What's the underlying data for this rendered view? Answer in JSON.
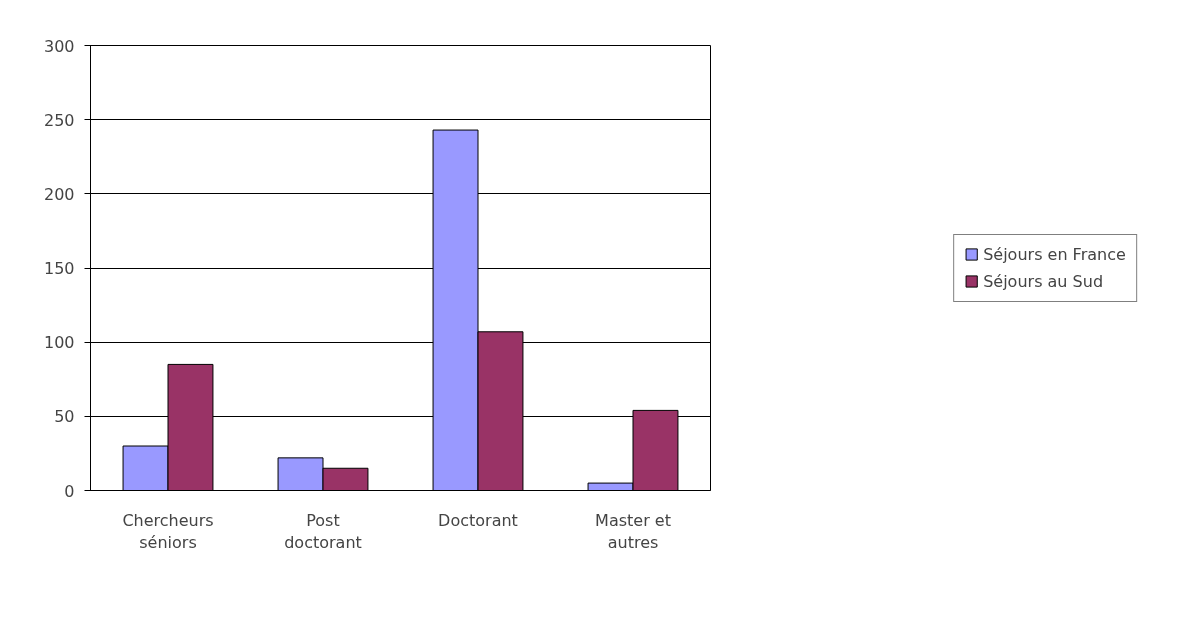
{
  "chart_data": {
    "type": "bar",
    "categories": [
      "Chercheurs séniors",
      "Post doctorant",
      "Doctorant",
      "Master et autres"
    ],
    "series": [
      {
        "name": "Séjours en France",
        "color": "#9999ff",
        "values": [
          30,
          22,
          243,
          5
        ]
      },
      {
        "name": "Séjours au Sud",
        "color": "#993366",
        "values": [
          85,
          15,
          107,
          54
        ]
      }
    ],
    "ylim": [
      0,
      300
    ],
    "yticks": [
      0,
      50,
      100,
      150,
      200,
      250,
      300
    ],
    "grid": "y",
    "legend": "right"
  }
}
